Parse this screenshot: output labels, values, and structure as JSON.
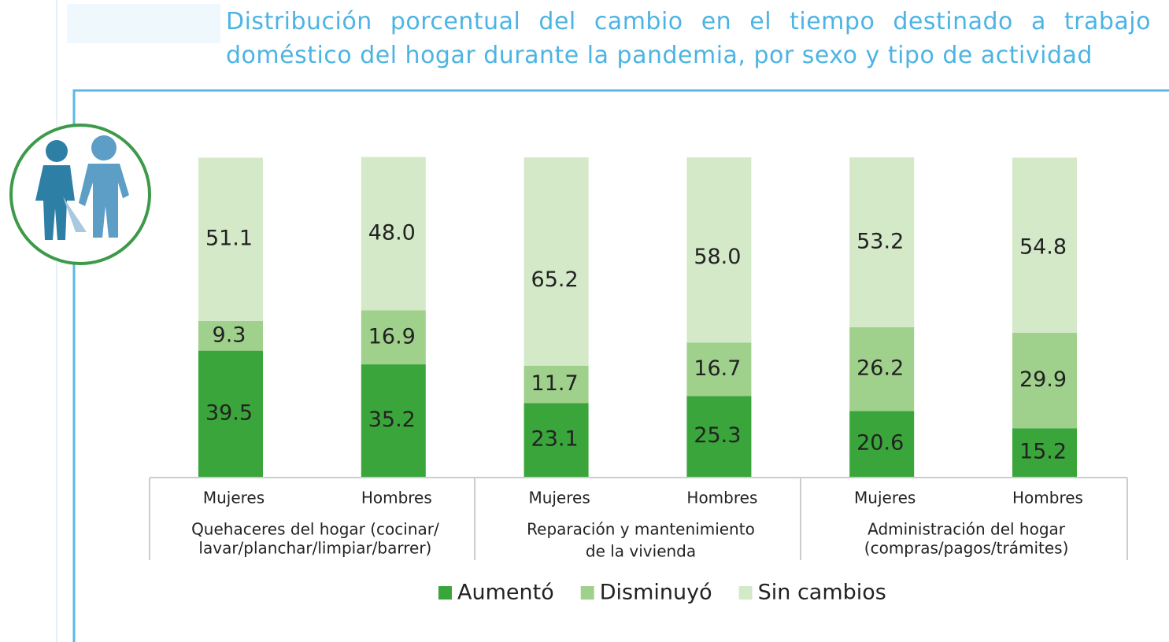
{
  "chart_data": {
    "type": "stacked_bar",
    "title": "Distribución porcentual del cambio en el tiempo destinado a trabajo doméstico del hogar durante la pandemia, por sexo y tipo de actividad",
    "categories": [
      "Mujeres",
      "Hombres",
      "Mujeres",
      "Hombres",
      "Mujeres",
      "Hombres"
    ],
    "groups": [
      [
        "Quehaceres del hogar (cocinar/",
        "lavar/planchar/limpiar/barrer)"
      ],
      [
        "Reparación y mantenimiento",
        "de la vivienda"
      ],
      [
        "Administración del hogar",
        "(compras/pagos/trámites)"
      ]
    ],
    "series": [
      {
        "name": "Aumentó",
        "color": "#3aa53a",
        "values": [
          39.5,
          35.2,
          23.1,
          25.3,
          20.6,
          15.2
        ],
        "value_labels": [
          "39.5",
          "35.2",
          "23.1",
          "25.3",
          "20.6",
          "15.2"
        ]
      },
      {
        "name": "Disminuyó",
        "color": "#a0d18c",
        "values": [
          9.3,
          16.9,
          11.7,
          16.7,
          26.2,
          29.9
        ],
        "value_labels": [
          "9.3",
          "16.9",
          "11.7",
          "16.7",
          "26.2",
          "29.9"
        ]
      },
      {
        "name": "Sin cambios",
        "color": "#d4e9c8",
        "values": [
          51.1,
          48.0,
          65.2,
          58.0,
          53.2,
          54.8
        ],
        "value_labels": [
          "51.1",
          "48.0",
          "65.2",
          "58.0",
          "53.2",
          "54.8"
        ]
      }
    ]
  }
}
